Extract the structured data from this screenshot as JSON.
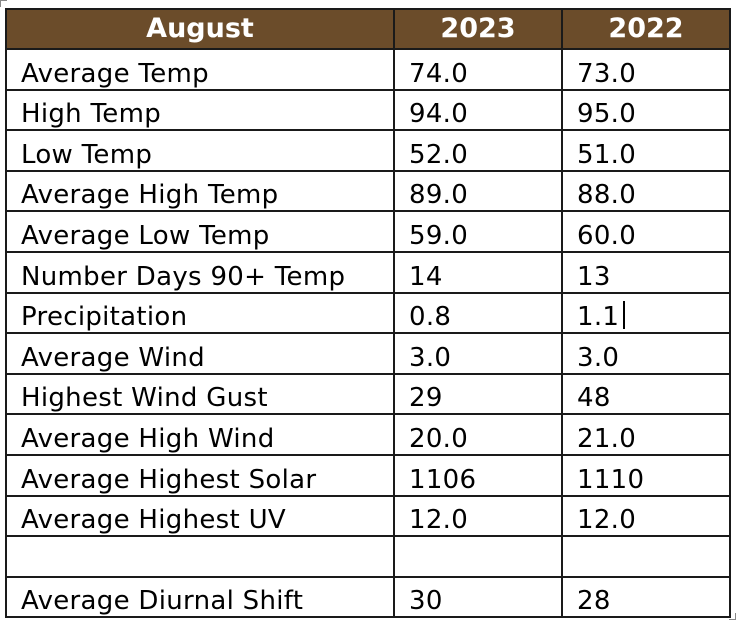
{
  "table": {
    "headers": [
      "August",
      "2023",
      "2022"
    ],
    "rows": [
      {
        "label": "Average Temp",
        "y2023": "74.0",
        "y2022": "73.0"
      },
      {
        "label": "High Temp",
        "y2023": "94.0",
        "y2022": "95.0"
      },
      {
        "label": "Low Temp",
        "y2023": "52.0",
        "y2022": "51.0"
      },
      {
        "label": "Average High Temp",
        "y2023": "89.0",
        "y2022": "88.0"
      },
      {
        "label": "Average Low Temp",
        "y2023": "59.0",
        "y2022": "60.0"
      },
      {
        "label": "Number Days 90+ Temp",
        "y2023": "14",
        "y2022": "13"
      },
      {
        "label": "Precipitation",
        "y2023": "0.8",
        "y2022": "1.1"
      },
      {
        "label": "Average Wind",
        "y2023": "3.0",
        "y2022": "3.0"
      },
      {
        "label": "Highest Wind Gust",
        "y2023": "29",
        "y2022": "48"
      },
      {
        "label": "Average High Wind",
        "y2023": "20.0",
        "y2022": "21.0"
      },
      {
        "label": "Average Highest Solar",
        "y2023": "1106",
        "y2022": "1110"
      },
      {
        "label": "Average Highest UV",
        "y2023": "12.0",
        "y2022": "12.0"
      },
      {
        "label": "",
        "y2023": "",
        "y2022": ""
      },
      {
        "label": "Average Diurnal Shift",
        "y2023": "30",
        "y2022": "28"
      }
    ]
  },
  "colors": {
    "header_bg": "#6b4c2a",
    "header_text": "#ffffff",
    "grid": "#1a1a1a"
  }
}
